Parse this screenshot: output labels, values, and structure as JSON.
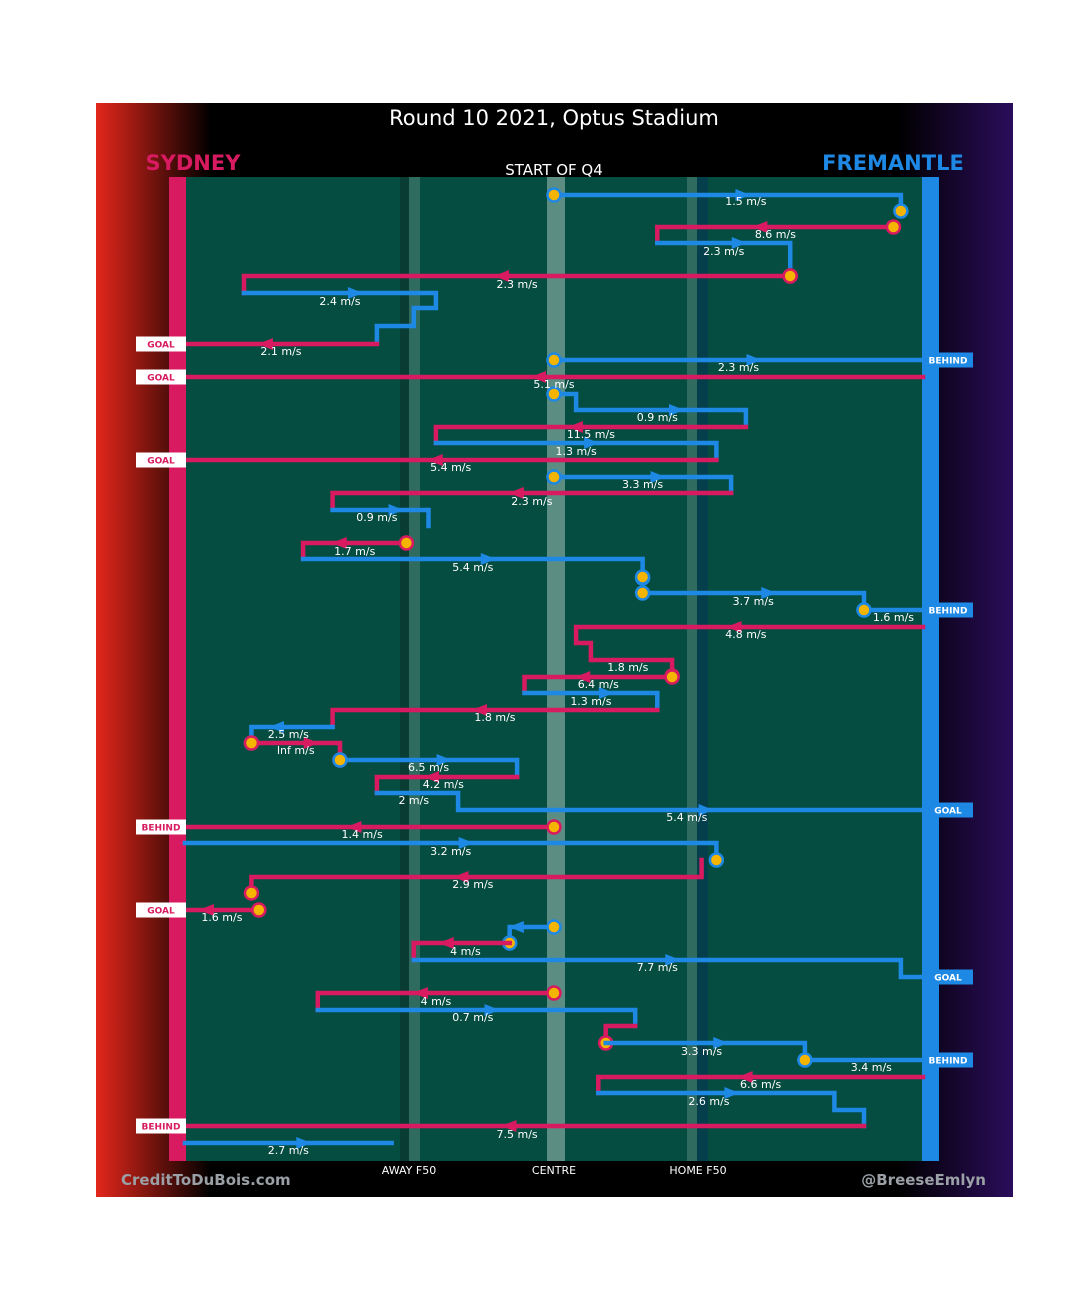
{
  "title": "Round 10 2021, Optus Stadium",
  "subtitle": "START OF Q4",
  "teams": {
    "left": {
      "name": "SYDNEY",
      "color": "#d81b60"
    },
    "right": {
      "name": "FREMANTLE",
      "color": "#1e88e5"
    }
  },
  "axis": {
    "away_f50": "AWAY F50",
    "centre": "CENTRE",
    "home_f50": "HOME F50"
  },
  "credits": {
    "left": "CreditToDuBois.com",
    "right": "@BreeseEmlyn"
  },
  "colors": {
    "sydney": "#d81b60",
    "fremantle": "#1e88e5",
    "field": "#054d40",
    "marker": "#f5b400"
  },
  "chart_data": {
    "type": "line",
    "description_units": "x: field position, 0 = Sydney goal line, 100 = Fremantle goal line",
    "x_range": [
      0,
      100
    ],
    "markers": {
      "away_f50": 30,
      "centre": 50,
      "home_f50": 70
    },
    "chains": [
      {
        "team": "FRE",
        "path": [
          [
            50,
            195
          ],
          [
            97,
            195
          ],
          [
            97,
            211
          ]
        ],
        "label": "1.5 m/s",
        "lx": 76,
        "ly": 201,
        "start": 50,
        "end": "marker"
      },
      {
        "team": "SYD",
        "path": [
          [
            96,
            227
          ],
          [
            64,
            227
          ],
          [
            64,
            242
          ]
        ],
        "label": "8.6 m/s",
        "lx": 80,
        "ly": 234,
        "start": 96,
        "end": null
      },
      {
        "team": "FRE",
        "path": [
          [
            64,
            243
          ],
          [
            82,
            243
          ],
          [
            82,
            266
          ]
        ],
        "label": "2.3 m/s",
        "lx": 73,
        "ly": 251,
        "start": null,
        "end": null
      },
      {
        "team": "SYD",
        "path": [
          [
            82,
            276
          ],
          [
            8,
            276
          ],
          [
            8,
            293
          ]
        ],
        "label": "2.3 m/s",
        "lx": 45,
        "ly": 284,
        "start": 82,
        "end": null
      },
      {
        "team": "FRE",
        "path": [
          [
            8,
            293
          ],
          [
            34,
            293
          ],
          [
            34,
            308
          ],
          [
            31,
            308
          ],
          [
            31,
            326
          ],
          [
            26,
            326
          ],
          [
            26,
            343
          ]
        ],
        "label": "2.4 m/s",
        "lx": 21,
        "ly": 301,
        "start": null,
        "end": null
      },
      {
        "team": "SYD",
        "path": [
          [
            26,
            344
          ],
          [
            0,
            344
          ]
        ],
        "label": "2.1 m/s",
        "lx": 13,
        "ly": 351,
        "start": null,
        "end": "GOAL"
      },
      {
        "team": "FRE",
        "path": [
          [
            50,
            360
          ],
          [
            100,
            360
          ]
        ],
        "label": "2.3 m/s",
        "lx": 75,
        "ly": 367,
        "start": 50,
        "end": "BEHIND"
      },
      {
        "team": "SYD",
        "path": [
          [
            100,
            377
          ],
          [
            0,
            377
          ]
        ],
        "label": "5.1 m/s",
        "lx": 50,
        "ly": 384,
        "start": null,
        "end": "GOAL"
      },
      {
        "team": "FRE",
        "path": [
          [
            50,
            394
          ],
          [
            53,
            394
          ],
          [
            53,
            410
          ],
          [
            76,
            410
          ],
          [
            76,
            426
          ]
        ],
        "label": "0.9 m/s",
        "lx": 64,
        "ly": 417,
        "start": 50,
        "end": null
      },
      {
        "team": "SYD",
        "path": [
          [
            76,
            427
          ],
          [
            34,
            427
          ],
          [
            34,
            443
          ]
        ],
        "label": "11.5 m/s",
        "lx": 55,
        "ly": 434,
        "start": null,
        "end": null
      },
      {
        "team": "FRE",
        "path": [
          [
            34,
            443
          ],
          [
            72,
            443
          ],
          [
            72,
            459
          ]
        ],
        "label": "1.3 m/s",
        "lx": 53,
        "ly": 451,
        "start": null,
        "end": null
      },
      {
        "team": "SYD",
        "path": [
          [
            72,
            460
          ],
          [
            0,
            460
          ]
        ],
        "label": "5.4 m/s",
        "lx": 36,
        "ly": 467,
        "start": null,
        "end": "GOAL"
      },
      {
        "team": "FRE",
        "path": [
          [
            50,
            477
          ],
          [
            74,
            477
          ],
          [
            74,
            492
          ]
        ],
        "label": "3.3 m/s",
        "lx": 62,
        "ly": 484,
        "start": 50,
        "end": null
      },
      {
        "team": "SYD",
        "path": [
          [
            74,
            493
          ],
          [
            20,
            493
          ],
          [
            20,
            509
          ]
        ],
        "label": "2.3 m/s",
        "lx": 47,
        "ly": 501,
        "start": null,
        "end": null
      },
      {
        "team": "FRE",
        "path": [
          [
            20,
            510
          ],
          [
            33,
            510
          ],
          [
            33,
            526
          ]
        ],
        "label": "0.9 m/s",
        "lx": 26,
        "ly": 517,
        "start": null,
        "end": null
      },
      {
        "team": "SYD",
        "path": [
          [
            30,
            543
          ],
          [
            16,
            543
          ],
          [
            16,
            558
          ]
        ],
        "label": "1.7 m/s",
        "lx": 23,
        "ly": 551,
        "start": 30,
        "end": null
      },
      {
        "team": "FRE",
        "path": [
          [
            16,
            559
          ],
          [
            62,
            559
          ],
          [
            62,
            578
          ]
        ],
        "label": "5.4 m/s",
        "lx": 39,
        "ly": 567,
        "start": null,
        "end": "marker"
      },
      {
        "team": "FRE",
        "path": [
          [
            62,
            593
          ],
          [
            92,
            593
          ],
          [
            92,
            610
          ],
          [
            100,
            610
          ]
        ],
        "label": "3.7 m/s",
        "lx": 77,
        "ly": 601,
        "start": 62,
        "end": "BEHIND"
      },
      {
        "team": "SYD",
        "path": [
          [
            100,
            627
          ],
          [
            53,
            627
          ],
          [
            53,
            643
          ],
          [
            55,
            643
          ],
          [
            55,
            660
          ],
          [
            66,
            660
          ],
          [
            66,
            676
          ]
        ],
        "label": "4.8 m/s",
        "lx": 76,
        "ly": 634,
        "start": null,
        "end": "marker"
      },
      {
        "team": "SYD",
        "path": [
          [
            66,
            677
          ],
          [
            46,
            677
          ],
          [
            46,
            692
          ]
        ],
        "label": "6.4 m/s",
        "lx": 56,
        "ly": 684,
        "start": 66,
        "end": null
      },
      {
        "team": "FRE",
        "path": [
          [
            46,
            693
          ],
          [
            64,
            693
          ],
          [
            64,
            708
          ]
        ],
        "label": "1.3 m/s",
        "lx": 55,
        "ly": 701,
        "start": null,
        "end": null
      },
      {
        "team": "SYD",
        "path": [
          [
            64,
            710
          ],
          [
            20,
            710
          ],
          [
            20,
            726
          ]
        ],
        "label": "1.8 m/s",
        "lx": 42,
        "ly": 717,
        "start": null,
        "end": null
      },
      {
        "team": "FRE",
        "path": [
          [
            20,
            727
          ],
          [
            9,
            727
          ],
          [
            9,
            743
          ]
        ],
        "label": "2.5 m/s",
        "lx": 14,
        "ly": 734,
        "start": null,
        "end": "marker"
      },
      {
        "team": "SYD",
        "path": [
          [
            9,
            743
          ],
          [
            21,
            743
          ],
          [
            21,
            760
          ]
        ],
        "label": "Inf m/s",
        "lx": 15,
        "ly": 750,
        "start": 9,
        "end": "marker"
      },
      {
        "team": "FRE",
        "path": [
          [
            21,
            760
          ],
          [
            45,
            760
          ],
          [
            45,
            776
          ]
        ],
        "label": "6.5 m/s",
        "lx": 33,
        "ly": 767,
        "start": 21,
        "end": null
      },
      {
        "team": "SYD",
        "path": [
          [
            45,
            777
          ],
          [
            26,
            777
          ],
          [
            26,
            793
          ]
        ],
        "label": "4.2 m/s",
        "lx": 35,
        "ly": 784,
        "start": null,
        "end": null
      },
      {
        "team": "FRE",
        "path": [
          [
            26,
            793
          ],
          [
            37,
            793
          ],
          [
            37,
            810
          ],
          [
            100,
            810
          ]
        ],
        "label": "5.4 m/s",
        "lx": 68,
        "ly": 817,
        "start": null,
        "end": "GOAL"
      },
      {
        "team": "SYD",
        "path": [
          [
            50,
            827
          ],
          [
            0,
            827
          ]
        ],
        "label": "1.4 m/s",
        "lx": 24,
        "ly": 834,
        "start": 50,
        "end": "BEHIND"
      },
      {
        "team": "FRE",
        "path": [
          [
            0,
            843
          ],
          [
            72,
            843
          ],
          [
            72,
            860
          ]
        ],
        "label": "3.2 m/s",
        "lx": 36,
        "ly": 851,
        "start": null,
        "end": "marker"
      },
      {
        "team": "SYD",
        "path": [
          [
            70,
            860
          ],
          [
            70,
            877
          ],
          [
            9,
            877
          ],
          [
            9,
            893
          ]
        ],
        "label": "2.9 m/s",
        "lx": 39,
        "ly": 884,
        "start": null,
        "end": "marker"
      },
      {
        "team": "SYD",
        "path": [
          [
            10,
            910
          ],
          [
            0,
            910
          ]
        ],
        "label": "1.6 m/s",
        "lx": 5,
        "ly": 917,
        "start": 10,
        "end": "GOAL"
      },
      {
        "team": "FRE",
        "path": [
          [
            50,
            927
          ],
          [
            44,
            927
          ],
          [
            44,
            943
          ]
        ],
        "label": "",
        "lx": 0,
        "ly": 0,
        "start": 50,
        "end": "marker"
      },
      {
        "team": "SYD",
        "path": [
          [
            44,
            943
          ],
          [
            31,
            943
          ],
          [
            31,
            960
          ]
        ],
        "label": "4 m/s",
        "lx": 38,
        "ly": 951,
        "start": null,
        "end": null
      },
      {
        "team": "FRE",
        "path": [
          [
            31,
            960
          ],
          [
            97,
            960
          ],
          [
            97,
            977
          ],
          [
            100,
            977
          ]
        ],
        "label": "7.7 m/s",
        "lx": 64,
        "ly": 967,
        "start": null,
        "end": "GOAL"
      },
      {
        "team": "SYD",
        "path": [
          [
            50,
            993
          ],
          [
            18,
            993
          ],
          [
            18,
            1010
          ]
        ],
        "label": "4 m/s",
        "lx": 34,
        "ly": 1001,
        "start": 50,
        "end": null
      },
      {
        "team": "FRE",
        "path": [
          [
            18,
            1010
          ],
          [
            61,
            1010
          ],
          [
            61,
            1026
          ]
        ],
        "label": "0.7 m/s",
        "lx": 39,
        "ly": 1017,
        "start": null,
        "end": null
      },
      {
        "team": "SYD",
        "path": [
          [
            61,
            1026
          ],
          [
            57,
            1026
          ],
          [
            57,
            1043
          ]
        ],
        "label": "",
        "lx": 0,
        "ly": 0,
        "start": null,
        "end": "marker"
      },
      {
        "team": "FRE",
        "path": [
          [
            57,
            1043
          ],
          [
            84,
            1043
          ],
          [
            84,
            1060
          ],
          [
            100,
            1060
          ]
        ],
        "label": "3.3 m/s",
        "lx": 70,
        "ly": 1051,
        "start": null,
        "end": "BEHIND"
      },
      {
        "team": "SYD",
        "path": [
          [
            100,
            1077
          ],
          [
            56,
            1077
          ],
          [
            56,
            1093
          ]
        ],
        "label": "6.6 m/s",
        "lx": 78,
        "ly": 1084,
        "start": null,
        "end": null
      },
      {
        "team": "FRE",
        "path": [
          [
            56,
            1093
          ],
          [
            88,
            1093
          ],
          [
            88,
            1110
          ],
          [
            92,
            1110
          ],
          [
            92,
            1126
          ]
        ],
        "label": "2.6 m/s",
        "lx": 71,
        "ly": 1101,
        "start": null,
        "end": null
      },
      {
        "team": "SYD",
        "path": [
          [
            92,
            1126
          ],
          [
            0,
            1126
          ]
        ],
        "label": "7.5 m/s",
        "lx": 45,
        "ly": 1134,
        "start": null,
        "end": "BEHIND"
      },
      {
        "team": "FRE",
        "path": [
          [
            0,
            1143
          ],
          [
            28,
            1143
          ]
        ],
        "label": "2.7 m/s",
        "lx": 14,
        "ly": 1150,
        "start": null,
        "end": null
      }
    ],
    "extra_labels": [
      {
        "text": "3.4 m/s",
        "x": 93,
        "y": 1067
      },
      {
        "text": "1.6 m/s",
        "x": 96,
        "y": 617
      },
      {
        "text": "2 m/s",
        "x": 31,
        "y": 800
      },
      {
        "text": "1.8 m/s",
        "x": 60,
        "y": 667
      }
    ],
    "extra_markers": [
      {
        "team": "FRE",
        "x": 62,
        "y": 577
      },
      {
        "team": "FRE",
        "x": 92,
        "y": 610
      },
      {
        "team": "FRE",
        "x": 84,
        "y": 1060
      },
      {
        "team": "SYD",
        "x": 82,
        "y": 276
      }
    ],
    "end_tags": [
      {
        "side": "left",
        "text": "GOAL",
        "y": 344
      },
      {
        "side": "left",
        "text": "GOAL",
        "y": 377
      },
      {
        "side": "left",
        "text": "GOAL",
        "y": 460
      },
      {
        "side": "left",
        "text": "BEHIND",
        "y": 827
      },
      {
        "side": "left",
        "text": "GOAL",
        "y": 910
      },
      {
        "side": "left",
        "text": "BEHIND",
        "y": 1126
      },
      {
        "side": "right",
        "text": "BEHIND",
        "y": 360
      },
      {
        "side": "right",
        "text": "BEHIND",
        "y": 610
      },
      {
        "side": "right",
        "text": "GOAL",
        "y": 810
      },
      {
        "side": "right",
        "text": "GOAL",
        "y": 977
      },
      {
        "side": "right",
        "text": "BEHIND",
        "y": 1060
      }
    ]
  }
}
